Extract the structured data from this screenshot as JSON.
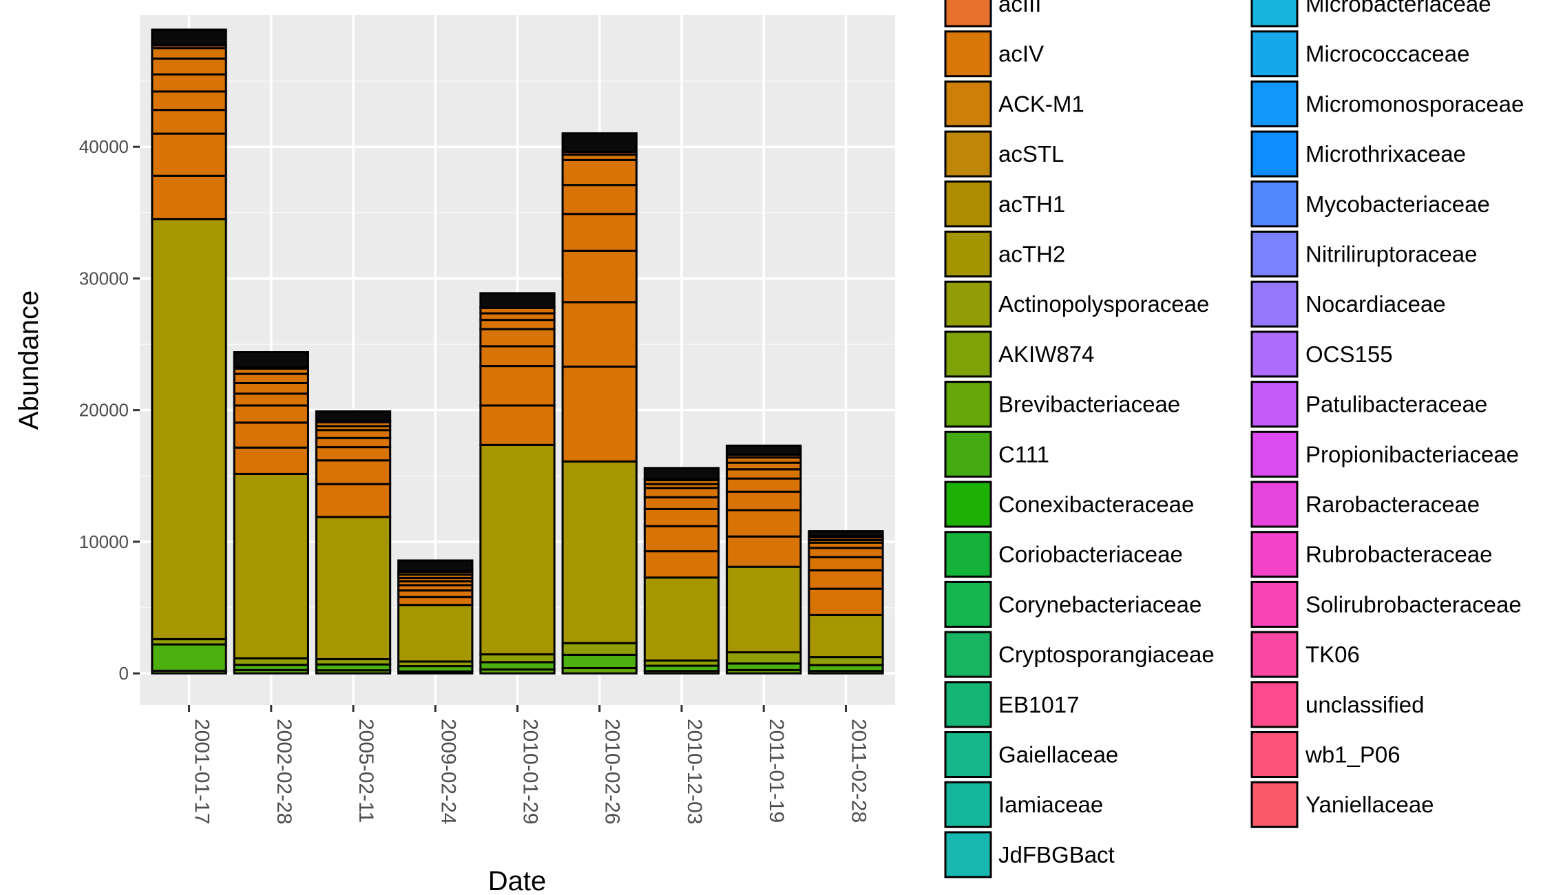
{
  "chart_data": {
    "type": "bar",
    "stacked": true,
    "xlabel": "Date",
    "ylabel": "Abundance",
    "ylim": [
      -2400,
      50000
    ],
    "yticks": [
      0,
      10000,
      20000,
      30000,
      40000
    ],
    "grid": true,
    "legend_position": "right",
    "categories": [
      "2001-01-17",
      "2002-02-28",
      "2005-02-11",
      "2009-02-24",
      "2010-01-29",
      "2010-02-26",
      "2010-12-03",
      "2011-01-19",
      "2011-02-28"
    ],
    "series": [
      {
        "name": "Brevibacteriaceae",
        "color": "#64A70A",
        "values": [
          200,
          250,
          230,
          150,
          300,
          400,
          180,
          250,
          180
        ]
      },
      {
        "name": "C111",
        "color": "#4CB010",
        "values": [
          2000,
          400,
          450,
          400,
          550,
          1000,
          400,
          500,
          450
        ]
      },
      {
        "name": "Actinopolysporaceae",
        "color": "#8F9F04",
        "values": [
          400,
          500,
          400,
          350,
          600,
          900,
          400,
          850,
          600
        ]
      },
      {
        "name": "acTH2",
        "color": "#A69700",
        "values": [
          31900,
          14000,
          10800,
          4300,
          15900,
          13800,
          6300,
          6500,
          3200
        ]
      },
      {
        "name": "acIV",
        "color": "#D87406",
        "values": [
          3300,
          2000,
          2500,
          600,
          3000,
          7200,
          2000,
          2300,
          2000
        ]
      },
      {
        "name": "acIV",
        "color": "#D87406",
        "values": [
          3200,
          1900,
          1800,
          500,
          3000,
          4900,
          1900,
          2000,
          1400
        ]
      },
      {
        "name": "acIV",
        "color": "#D87406",
        "values": [
          1800,
          1300,
          1000,
          400,
          1500,
          3900,
          1300,
          1400,
          1000
        ]
      },
      {
        "name": "acIV",
        "color": "#D87406",
        "values": [
          1400,
          900,
          700,
          300,
          1300,
          2800,
          900,
          1000,
          700
        ]
      },
      {
        "name": "acIV",
        "color": "#D87406",
        "values": [
          1300,
          800,
          600,
          250,
          700,
          2200,
          700,
          700,
          400
        ]
      },
      {
        "name": "acIV",
        "color": "#D87406",
        "values": [
          1200,
          700,
          300,
          250,
          500,
          1900,
          300,
          500,
          200
        ]
      },
      {
        "name": "acIV",
        "color": "#D87406",
        "values": [
          800,
          400,
          300,
          200,
          400,
          400,
          300,
          400,
          200
        ]
      },
      {
        "name": "acIII",
        "color": "#E6702F",
        "values": [
          200,
          100,
          100,
          80,
          100,
          200,
          100,
          200,
          100
        ]
      },
      {
        "name": "unclassified",
        "color": "#0A0A0A",
        "values": [
          1200,
          1150,
          720,
          800,
          1030,
          1420,
          820,
          700,
          370
        ]
      }
    ]
  },
  "legend": {
    "column1": [
      {
        "label": "acIII",
        "color": "#E7722B"
      },
      {
        "label": "acIV",
        "color": "#D97809"
      },
      {
        "label": "ACK-M1",
        "color": "#CD7F08"
      },
      {
        "label": "acSTL",
        "color": "#BF8707"
      },
      {
        "label": "acTH1",
        "color": "#AF8D02"
      },
      {
        "label": "acTH2",
        "color": "#A29500"
      },
      {
        "label": "Actinopolysporaceae",
        "color": "#929C04"
      },
      {
        "label": "AKIW874",
        "color": "#7EA208"
      },
      {
        "label": "Brevibacteriaceae",
        "color": "#66A70A"
      },
      {
        "label": "C111",
        "color": "#44AC12"
      },
      {
        "label": "Conexibacteraceae",
        "color": "#1DB105"
      },
      {
        "label": "Coriobacteriaceae",
        "color": "#14B238"
      },
      {
        "label": "Corynebacteriaceae",
        "color": "#15B550"
      },
      {
        "label": "Cryptosporangiaceae",
        "color": "#17B461"
      },
      {
        "label": "EB1017",
        "color": "#15B575"
      },
      {
        "label": "Gaiellaceae",
        "color": "#15B78A"
      },
      {
        "label": "Iamiaceae",
        "color": "#17B79E"
      },
      {
        "label": "JdFBGBact",
        "color": "#18B8B0"
      }
    ],
    "column2": [
      {
        "label": "Microbacteriaceae",
        "color": "#18B4E0"
      },
      {
        "label": "Micrococcaceae",
        "color": "#17A8EC"
      },
      {
        "label": "Micromonosporaceae",
        "color": "#1198FA"
      },
      {
        "label": "Microthrixaceae",
        "color": "#0E8DFF"
      },
      {
        "label": "Mycobacteriaceae",
        "color": "#5287FF"
      },
      {
        "label": "Nitriliruptoraceae",
        "color": "#7A82FF"
      },
      {
        "label": "Nocardiaceae",
        "color": "#9479FF"
      },
      {
        "label": "OCS155",
        "color": "#AE6DFF"
      },
      {
        "label": "Patulibacteraceae",
        "color": "#C65BFC"
      },
      {
        "label": "Propionibacteriaceae",
        "color": "#DB4CF0"
      },
      {
        "label": "Rarobacteraceae",
        "color": "#E845DE"
      },
      {
        "label": "Rubrobacteraceae",
        "color": "#F243C9"
      },
      {
        "label": "Solirubrobacteraceae",
        "color": "#F745B7"
      },
      {
        "label": "TK06",
        "color": "#FB47A4"
      },
      {
        "label": "unclassified",
        "color": "#FD4B8E"
      },
      {
        "label": "wb1_P06",
        "color": "#FD537A"
      },
      {
        "label": "Yaniellaceae",
        "color": "#FB5A6A"
      }
    ]
  }
}
